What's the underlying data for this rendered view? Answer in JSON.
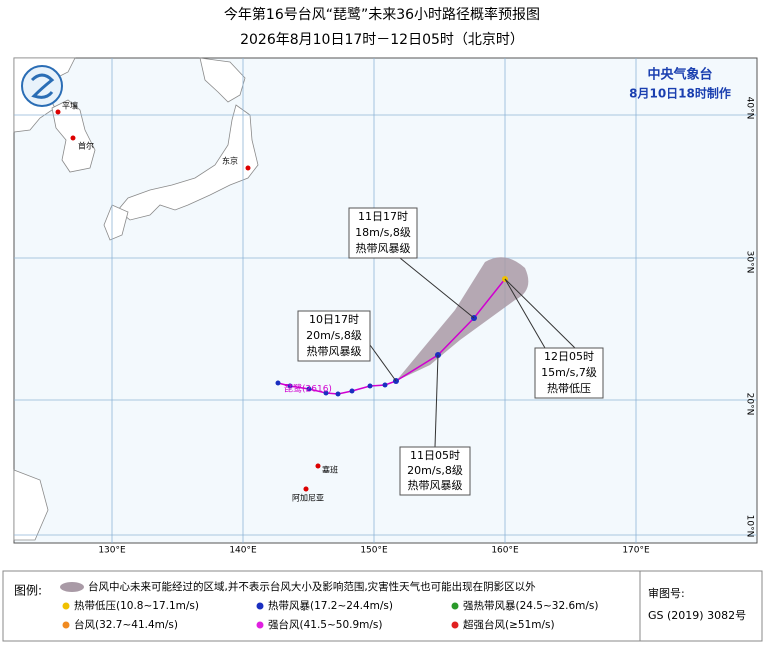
{
  "header": {
    "title": "今年第16号台风“琵鹭”未来36小时路径概率预报图",
    "subtitle": "2026年8月10日17时－12日05时（北京时）"
  },
  "map": {
    "agency": "中央气象台",
    "issued": "8月10日18时制作",
    "lon_labels": [
      "130°E",
      "140°E",
      "150°E",
      "160°E",
      "170°E"
    ],
    "lat_labels": [
      "40°N",
      "30°N",
      "20°N",
      "10°N"
    ],
    "cities": [
      "平壤",
      "首尔",
      "东京",
      "塞班",
      "阿加尼亚"
    ],
    "typhoon_label": "琵鹭(2616)",
    "callouts": [
      {
        "lines": [
          "11日17时",
          "18m/s,8级",
          "热带风暴级"
        ]
      },
      {
        "lines": [
          "10日17时",
          "20m/s,8级",
          "热带风暴级"
        ]
      },
      {
        "lines": [
          "11日05时",
          "20m/s,8级",
          "热带风暴级"
        ]
      },
      {
        "lines": [
          "12日05时",
          "15m/s,7级",
          "热带低压"
        ]
      }
    ]
  },
  "legend": {
    "title": "图例:",
    "cone": "台风中心未来可能经过的区域,并不表示台风大小及影响范围,灾害性天气也可能出现在阴影区以外",
    "items": [
      "热带低压(10.8~17.1m/s)",
      "热带风暴(17.2~24.4m/s)",
      "强热带风暴(24.5~32.6m/s)",
      "台风(32.7~41.4m/s)",
      "强台风(41.5~50.9m/s)",
      "超强台风(≥51m/s)"
    ]
  },
  "review": {
    "label": "审图号:",
    "number": "GS (2019) 3082号"
  }
}
